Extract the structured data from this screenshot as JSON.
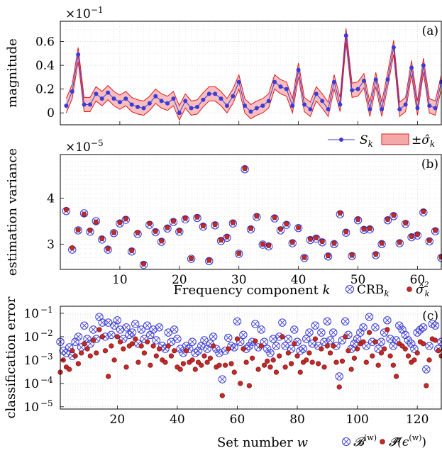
{
  "chart_data": [
    {
      "type": "line",
      "panel_tag": "(a)",
      "y_exponent_label": "×10",
      "y_exponent_power": "−1",
      "ylabel": "magnitude",
      "xlim": [
        0,
        64
      ],
      "ylim": [
        -0.1,
        0.77
      ],
      "yticks": [
        0,
        0.2,
        0.4,
        0.6
      ],
      "ytick_labels": [
        "0",
        "0.2",
        "0.4",
        "0.6"
      ],
      "xticks": [
        10,
        20,
        30,
        40,
        50,
        60
      ],
      "grid": true,
      "legend_position": "below-right",
      "legend": {
        "series": "S",
        "series_sub": "k",
        "band": "±σ̂",
        "band_sub": "k"
      },
      "series": [
        {
          "name": "S_k",
          "x": [
            1,
            2,
            3,
            4,
            5,
            6,
            7,
            8,
            9,
            10,
            11,
            12,
            13,
            14,
            15,
            16,
            17,
            18,
            19,
            20,
            21,
            22,
            23,
            24,
            25,
            26,
            27,
            28,
            29,
            30,
            31,
            32,
            33,
            34,
            35,
            36,
            37,
            38,
            39,
            40,
            41,
            42,
            43,
            44,
            45,
            46,
            47,
            48,
            49,
            50,
            51,
            52,
            53,
            54,
            55,
            56,
            57,
            58,
            59,
            60,
            61,
            62,
            63,
            64
          ],
          "y": [
            0.06,
            0.18,
            0.49,
            0.07,
            0.07,
            0.16,
            0.12,
            0.17,
            0.12,
            0.09,
            0.12,
            0.07,
            0.05,
            0.04,
            0.08,
            0.14,
            0.1,
            0.08,
            0.12,
            0.0,
            0.1,
            0.04,
            0.05,
            0.11,
            0.16,
            0.16,
            0.12,
            0.06,
            0.14,
            0.26,
            0.06,
            0.01,
            0.04,
            0.06,
            0.1,
            0.26,
            0.22,
            0.2,
            0.06,
            0.36,
            0.07,
            0.03,
            0.16,
            0.1,
            0.03,
            0.26,
            0.07,
            0.65,
            0.19,
            0.2,
            0.27,
            0.03,
            0.28,
            0.03,
            0.28,
            0.55,
            0.03,
            0.07,
            0.38,
            0.04,
            0.4,
            0.06,
            0.04,
            0.26
          ],
          "band_halfwidth": 0.06,
          "color": "#3b3bd6",
          "band_color": "#f4a9a9"
        }
      ]
    },
    {
      "type": "scatter",
      "panel_tag": "(b)",
      "y_exponent_label": "×10",
      "y_exponent_power": "−5",
      "ylabel": "estimation variance",
      "xlabel": "Frequency component ",
      "xlabel_var": "k",
      "xlim": [
        0,
        64
      ],
      "ylim": [
        2.45,
        4.95
      ],
      "yticks": [
        3,
        4
      ],
      "ytick_labels": [
        "3",
        "4"
      ],
      "xticks": [
        10,
        20,
        30,
        40,
        50,
        60
      ],
      "xtick_labels": [
        "10",
        "20",
        "30",
        "40",
        "50",
        "60"
      ],
      "grid": true,
      "legend_position": "below-right",
      "legend": {
        "crb": "CRB",
        "crb_sub": "k",
        "var": "σ̂",
        "var_sub": "k",
        "var_sup": "2"
      },
      "series": [
        {
          "name": "CRB_k",
          "marker": "circle-x",
          "color": "#3b3bd6",
          "x": [
            1,
            2,
            3,
            4,
            5,
            6,
            7,
            8,
            9,
            10,
            11,
            12,
            13,
            14,
            15,
            16,
            17,
            18,
            19,
            20,
            21,
            22,
            23,
            24,
            25,
            26,
            27,
            28,
            29,
            30,
            31,
            32,
            33,
            34,
            35,
            36,
            37,
            38,
            39,
            40,
            41,
            42,
            43,
            44,
            45,
            46,
            47,
            48,
            49,
            50,
            51,
            52,
            53,
            54,
            55,
            56,
            57,
            58,
            59,
            60,
            61,
            62,
            63,
            64
          ],
          "y": [
            3.72,
            2.88,
            3.3,
            3.67,
            3.27,
            3.5,
            3.1,
            2.88,
            3.24,
            3.45,
            3.53,
            2.84,
            3.22,
            2.55,
            3.42,
            3.26,
            3.05,
            3.34,
            3.48,
            3.27,
            3.54,
            2.68,
            3.57,
            3.38,
            2.63,
            3.41,
            3.07,
            3.14,
            3.45,
            2.79,
            4.63,
            3.32,
            3.59,
            2.99,
            2.95,
            3.56,
            3.3,
            3.42,
            3.02,
            3.35,
            2.7,
            3.09,
            3.12,
            3.04,
            2.73,
            3.0,
            3.65,
            3.25,
            2.74,
            3.52,
            3.31,
            3.32,
            2.76,
            3.0,
            3.52,
            3.61,
            3.02,
            3.44,
            3.15,
            3.19,
            3.69,
            3.06,
            3.28,
            2.7
          ]
        },
        {
          "name": "σ̂_k^2",
          "marker": "dot",
          "color": "#c62828",
          "x": [
            1,
            2,
            3,
            4,
            5,
            6,
            7,
            8,
            9,
            10,
            11,
            12,
            13,
            14,
            15,
            16,
            17,
            18,
            19,
            20,
            21,
            22,
            23,
            24,
            25,
            26,
            27,
            28,
            29,
            30,
            31,
            32,
            33,
            34,
            35,
            36,
            37,
            38,
            39,
            40,
            41,
            42,
            43,
            44,
            45,
            46,
            47,
            48,
            49,
            50,
            51,
            52,
            53,
            54,
            55,
            56,
            57,
            58,
            59,
            60,
            61,
            62,
            63,
            64
          ],
          "y": [
            3.75,
            2.92,
            3.31,
            3.65,
            3.3,
            3.48,
            3.12,
            2.9,
            3.25,
            3.47,
            3.55,
            2.86,
            3.25,
            2.57,
            3.45,
            3.28,
            3.07,
            3.36,
            3.5,
            3.29,
            3.56,
            2.69,
            3.59,
            3.4,
            2.65,
            3.43,
            3.09,
            3.16,
            3.47,
            2.8,
            4.65,
            3.34,
            3.61,
            3.0,
            2.97,
            3.58,
            3.33,
            3.44,
            3.04,
            3.36,
            2.71,
            3.11,
            3.14,
            3.06,
            2.75,
            3.02,
            3.68,
            3.27,
            2.76,
            3.54,
            3.33,
            3.34,
            2.78,
            3.02,
            3.54,
            3.63,
            3.04,
            3.46,
            3.17,
            3.21,
            3.71,
            3.08,
            3.3,
            2.72
          ]
        }
      ]
    },
    {
      "type": "scatter",
      "panel_tag": "(c)",
      "ylabel": "classification error",
      "xlabel": "Set number ",
      "xlabel_var": "w",
      "y_scale": "log",
      "xlim": [
        1,
        128
      ],
      "ylim": [
        8e-06,
        0.2
      ],
      "yticks": [
        1e-05,
        0.0001,
        0.001,
        0.01,
        0.1
      ],
      "ytick_base": "10",
      "ytick_powers": [
        "−5",
        "−4",
        "−3",
        "−2",
        "−1"
      ],
      "xticks": [
        20,
        40,
        60,
        80,
        100,
        120
      ],
      "xtick_labels": [
        "20",
        "40",
        "60",
        "80",
        "100",
        "120"
      ],
      "grid": true,
      "legend_position": "below-right",
      "legend": {
        "bound": "𝓑",
        "bound_sup": "(w)",
        "perr": "𝓟̂(ϵ",
        "perr_sup": "(w)",
        "perr_close": ")"
      },
      "series": [
        {
          "name": "B^(w)",
          "marker": "circle-x",
          "color": "#3b3bd6",
          "x": [
            1,
            2,
            3,
            4,
            5,
            6,
            7,
            8,
            9,
            10,
            11,
            12,
            13,
            14,
            15,
            16,
            17,
            18,
            19,
            20,
            21,
            22,
            23,
            24,
            25,
            26,
            27,
            28,
            29,
            30,
            31,
            32,
            33,
            34,
            35,
            36,
            37,
            38,
            39,
            40,
            41,
            42,
            43,
            44,
            45,
            46,
            47,
            48,
            49,
            50,
            51,
            52,
            53,
            54,
            55,
            56,
            57,
            58,
            59,
            60,
            61,
            62,
            63,
            64,
            65,
            66,
            67,
            68,
            69,
            70,
            71,
            72,
            73,
            74,
            75,
            76,
            77,
            78,
            79,
            80,
            81,
            82,
            83,
            84,
            85,
            86,
            87,
            88,
            89,
            90,
            91,
            92,
            93,
            94,
            95,
            96,
            97,
            98,
            99,
            100,
            101,
            102,
            103,
            104,
            105,
            106,
            107,
            108,
            109,
            110,
            111,
            112,
            113,
            114,
            115,
            116,
            117,
            118,
            119,
            120,
            121,
            122,
            123,
            124,
            125,
            126,
            127,
            128
          ],
          "y": [
            0.006,
            0.0025,
            0.002,
            0.0035,
            0.0015,
            0.006,
            0.01,
            0.0035,
            0.03,
            0.008,
            0.005,
            0.02,
            0.008,
            0.07,
            0.04,
            0.01,
            0.04,
            0.012,
            0.03,
            0.05,
            0.02,
            0.008,
            0.025,
            0.012,
            0.015,
            0.035,
            0.005,
            0.02,
            0.008,
            0.03,
            0.012,
            0.02,
            0.007,
            0.025,
            0.004,
            0.003,
            0.015,
            0.006,
            0.02,
            0.008,
            0.003,
            0.002,
            0.004,
            0.003,
            0.006,
            0.002,
            0.0025,
            0.004,
            0.007,
            0.003,
            0.005,
            0.01,
            0.003,
            0.002,
            0.00015,
            0.0025,
            0.009,
            0.004,
            0.0035,
            0.045,
            0.006,
            0.012,
            0.003,
            0.004,
            0.006,
            0.035,
            0.0035,
            0.02,
            0.006,
            0.003,
            0.002,
            0.008,
            0.004,
            0.01,
            0.04,
            0.004,
            0.008,
            0.003,
            0.02,
            0.006,
            0.0025,
            0.003,
            0.008,
            0.015,
            0.005,
            0.03,
            0.004,
            0.015,
            0.006,
            0.045,
            0.007,
            0.015,
            0.004,
            0.0002,
            0.007,
            0.045,
            0.012,
            0.003,
            0.005,
            0.008,
            0.015,
            0.025,
            0.004,
            0.07,
            0.006,
            0.025,
            0.003,
            0.006,
            0.015,
            0.05,
            0.008,
            0.004,
            0.007,
            0.03,
            0.02,
            0.012,
            0.007,
            0.005,
            0.003,
            0.015,
            0.02,
            0.025,
            0.0004,
            0.004,
            0.035,
            0.03,
            0.003,
            0.006
          ]
        },
        {
          "name": "P(ε^(w))",
          "marker": "dot",
          "color": "#c62828",
          "x": [
            1,
            2,
            3,
            4,
            5,
            6,
            7,
            8,
            9,
            10,
            11,
            12,
            13,
            14,
            15,
            16,
            17,
            18,
            19,
            20,
            21,
            22,
            23,
            24,
            25,
            26,
            27,
            28,
            29,
            30,
            31,
            32,
            33,
            34,
            35,
            36,
            37,
            38,
            39,
            40,
            41,
            42,
            43,
            44,
            45,
            46,
            47,
            48,
            49,
            50,
            51,
            52,
            53,
            54,
            55,
            56,
            57,
            58,
            59,
            60,
            61,
            62,
            63,
            64,
            65,
            66,
            67,
            68,
            69,
            70,
            71,
            72,
            73,
            74,
            75,
            76,
            77,
            78,
            79,
            80,
            81,
            82,
            83,
            84,
            85,
            86,
            87,
            88,
            89,
            90,
            91,
            92,
            93,
            94,
            95,
            96,
            97,
            98,
            99,
            100,
            101,
            102,
            103,
            104,
            105,
            106,
            107,
            108,
            109,
            110,
            111,
            112,
            113,
            114,
            115,
            116,
            117,
            118,
            119,
            120,
            121,
            122,
            123,
            124,
            125,
            126,
            127,
            128
          ],
          "y": [
            0.0003,
            0.001,
            0.0005,
            0.0004,
            0.0025,
            0.0015,
            0.0007,
            0.002,
            0.005,
            0.003,
            0.0015,
            0.007,
            0.002,
            0.02,
            0.01,
            0.0025,
            0.0002,
            0.004,
            0.001,
            0.01,
            0.006,
            0.003,
            0.0005,
            0.004,
            0.005,
            0.008,
            0.0008,
            0.004,
            0.002,
            0.006,
            0.0006,
            0.004,
            0.0015,
            0.003,
            0.001,
            0.0008,
            0.004,
            0.0015,
            0.0025,
            0.0005,
            0.0004,
            0.0007,
            0.0025,
            0.0008,
            0.001,
            0.0004,
            0.0008,
            0.0006,
            0.0015,
            0.0008,
            0.0012,
            0.004,
            0.0005,
            0.0006,
            3e-05,
            0.0006,
            0.003,
            0.0007,
            0.0003,
            0.008,
            0.0001,
            0.003,
            0.0008,
            8e-05,
            0.0012,
            0.0065,
            0.0004,
            0.004,
            0.0006,
            0.0009,
            0.0005,
            0.001,
            0.0003,
            0.0015,
            0.01,
            0.0005,
            0.002,
            0.0007,
            0.005,
            0.0015,
            0.0003,
            0.0008,
            0.001,
            0.002,
            0.0008,
            0.008,
            0.0007,
            0.003,
            0.0005,
            0.004,
            0.002,
            0.004,
            0.0008,
            7e-05,
            0.0009,
            0.01,
            0.0025,
            0.0004,
            0.0012,
            0.003,
            0.005,
            0.006,
            0.0008,
            0.015,
            0.0015,
            0.006,
            0.0006,
            0.002,
            0.003,
            0.02,
            0.0015,
            0.0006,
            0.0002,
            0.005,
            0.004,
            0.003,
            0.0015,
            0.0008,
            0.001,
            0.002,
            0.006,
            0.005,
            8e-05,
            0.001,
            0.008,
            0.007,
            0.0025,
            0.0015
          ]
        }
      ]
    }
  ]
}
